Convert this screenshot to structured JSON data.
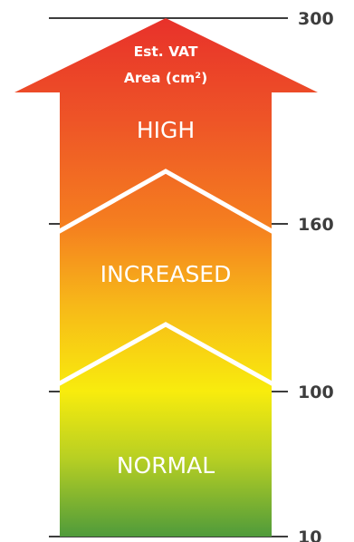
{
  "title": {
    "line1": "Est. VAT",
    "line2": "Area (cm²)"
  },
  "zones": [
    {
      "label": "HIGH"
    },
    {
      "label": "INCREASED"
    },
    {
      "label": "NORMAL"
    }
  ],
  "scale": {
    "ticks": [
      "300",
      "160",
      "100",
      "10"
    ]
  },
  "colors": {
    "top": "#e8312a",
    "upper_mid": "#f57f1f",
    "mid": "#f7b719",
    "lower_mid": "#f8ec0d",
    "bottom": "#4f9b3b",
    "divider": "#ffffff",
    "tick": "#3d3d3d"
  }
}
